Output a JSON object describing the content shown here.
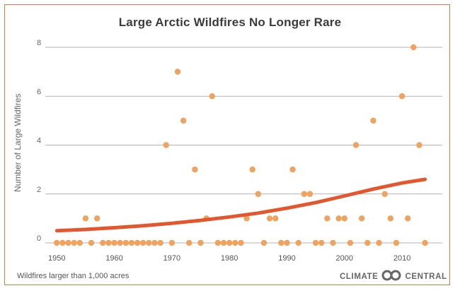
{
  "chart_data": {
    "type": "scatter",
    "title": "Large Arctic Wildfires No Longer Rare",
    "ylabel": "Number of Large Wildfires",
    "xlabel": "",
    "note": "Wildfires larger than 1,000 acres",
    "xlim": [
      1948,
      2017
    ],
    "ylim": [
      0,
      8
    ],
    "x_ticks": [
      1950,
      1960,
      1970,
      1980,
      1990,
      2000,
      2010
    ],
    "y_ticks": [
      0,
      2,
      4,
      6,
      8
    ],
    "grid": "horizontal",
    "point_color": "#f0a25f",
    "trend_color": "#e4572e",
    "points": {
      "x": [
        1950,
        1951,
        1952,
        1953,
        1954,
        1955,
        1956,
        1957,
        1958,
        1959,
        1960,
        1961,
        1962,
        1963,
        1964,
        1965,
        1966,
        1967,
        1968,
        1969,
        1970,
        1971,
        1972,
        1973,
        1974,
        1975,
        1976,
        1977,
        1978,
        1979,
        1980,
        1981,
        1982,
        1983,
        1984,
        1985,
        1986,
        1987,
        1988,
        1989,
        1990,
        1991,
        1992,
        1993,
        1994,
        1995,
        1996,
        1997,
        1998,
        1999,
        2000,
        2001,
        2002,
        2003,
        2004,
        2005,
        2006,
        2007,
        2008,
        2009,
        2010,
        2011,
        2012,
        2013,
        2014
      ],
      "y": [
        0,
        0,
        0,
        0,
        0,
        1,
        0,
        1,
        0,
        0,
        0,
        0,
        0,
        0,
        0,
        0,
        0,
        0,
        0,
        4,
        0,
        7,
        5,
        0,
        3,
        0,
        1,
        6,
        0,
        0,
        0,
        0,
        0,
        1,
        3,
        2,
        0,
        1,
        1,
        0,
        0,
        3,
        0,
        2,
        2,
        0,
        0,
        1,
        0,
        1,
        1,
        0,
        4,
        1,
        0,
        5,
        0,
        2,
        1,
        0,
        6,
        1,
        8,
        4,
        0
      ]
    },
    "trend": {
      "x": [
        1950,
        1955,
        1960,
        1965,
        1970,
        1975,
        1980,
        1985,
        1990,
        1995,
        2000,
        2005,
        2010,
        2014
      ],
      "y": [
        0.5,
        0.55,
        0.62,
        0.7,
        0.8,
        0.92,
        1.06,
        1.22,
        1.42,
        1.65,
        1.92,
        2.2,
        2.45,
        2.6
      ]
    }
  },
  "brand": {
    "left": "CLIMATE",
    "right": "CENTRAL",
    "logo_icon": "climate-central-logo-icon",
    "color": "#666666"
  }
}
